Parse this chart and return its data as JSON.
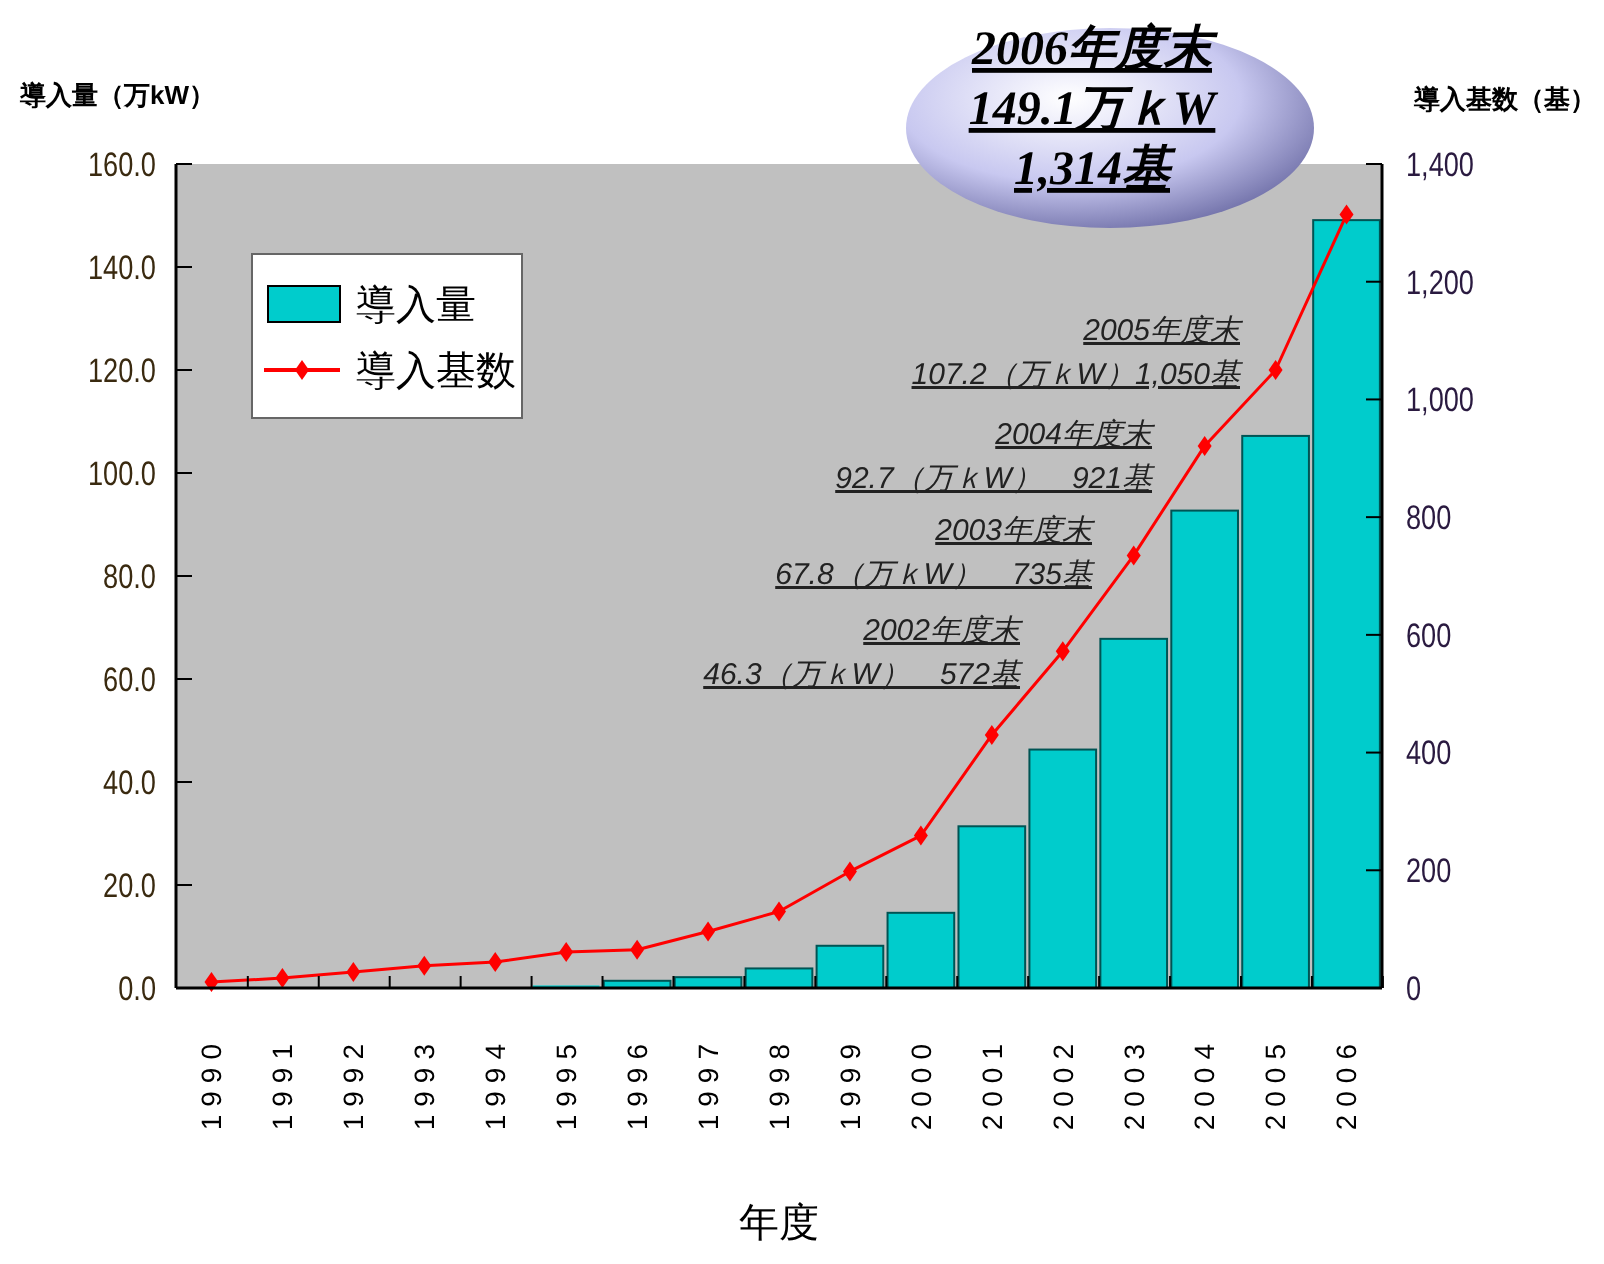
{
  "chart_data": {
    "type": "bar",
    "xlabel": "年度",
    "ylabel": "導入量（万kW）",
    "y2label": "導入基数（基）",
    "categories": [
      "1990",
      "1991",
      "1992",
      "1993",
      "1994",
      "1995",
      "1996",
      "1997",
      "1998",
      "1999",
      "2000",
      "2001",
      "2002",
      "2003",
      "2004",
      "2005",
      "2006"
    ],
    "series": [
      {
        "name": "導入量",
        "color": "#00cccc",
        "values": [
          0,
          0,
          0,
          null,
          null,
          0.5,
          1.4,
          2.1,
          3.8,
          8.2,
          14.6,
          31.4,
          46.3,
          67.8,
          92.7,
          107.2,
          149.1
        ]
      },
      {
        "name": "導入基数",
        "type": "line",
        "axis": "y2",
        "color": "#ff0000",
        "marker": "diamond",
        "values": [
          10,
          17,
          27,
          38,
          44,
          61,
          65,
          96,
          130,
          198,
          259,
          430,
          572,
          735,
          921,
          1050,
          1314
        ]
      }
    ],
    "ylim": [
      0,
      160
    ],
    "yticks": [
      {
        "value": 0,
        "label": "0.0"
      },
      {
        "value": 20,
        "label": "20.0"
      },
      {
        "value": 40,
        "label": "40.0"
      },
      {
        "value": 60,
        "label": "60.0"
      },
      {
        "value": 80,
        "label": "80.0"
      },
      {
        "value": 100,
        "label": "100.0"
      },
      {
        "value": 120,
        "label": "120.0"
      },
      {
        "value": 140,
        "label": "140.0"
      },
      {
        "value": 160,
        "label": "160.0"
      }
    ],
    "y2lim": [
      0,
      1400
    ],
    "y2ticks": [
      0,
      200,
      400,
      600,
      800,
      {
        "value": 1000,
        "label": "1,000"
      },
      {
        "value": 1200,
        "label": "1,200"
      },
      {
        "value": 1400,
        "label": "1,400"
      }
    ],
    "legend": "top left",
    "grid": false,
    "annotations": [
      "2006年度末\n149.1万ｋW\n1,314基",
      "2005年度末\n107.2（万ｋW）1,050基",
      "2004年度末\n92.7（万ｋW）　921基",
      "2003年度末\n67.8（万ｋW）　735基",
      "2002年度末\n46.3（万ｋW）　572基"
    ]
  }
}
